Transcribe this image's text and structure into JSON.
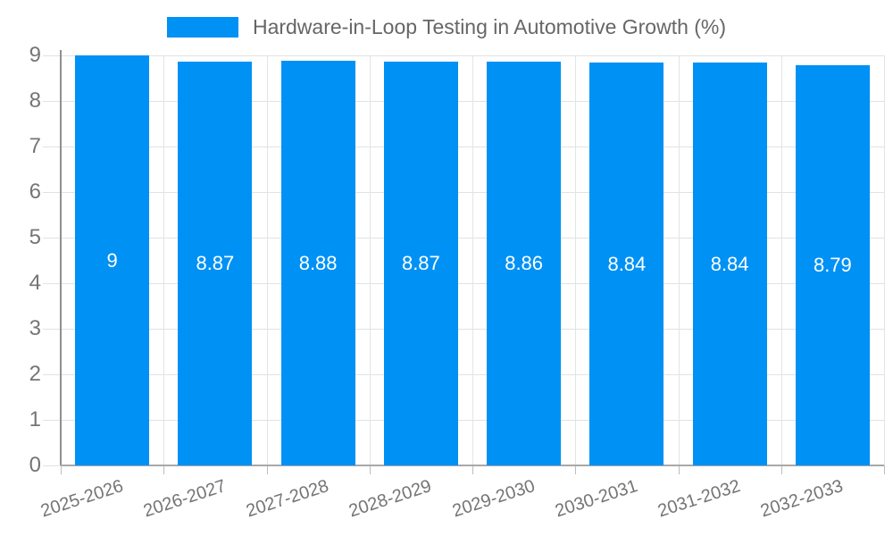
{
  "chart_data": {
    "type": "bar",
    "legend_label": "Hardware-in-Loop Testing in Automotive Growth (%)",
    "categories": [
      "2025-2026",
      "2026-2027",
      "2027-2028",
      "2028-2029",
      "2029-2030",
      "2030-2031",
      "2031-2032",
      "2032-2033"
    ],
    "values": [
      9,
      8.87,
      8.88,
      8.87,
      8.86,
      8.84,
      8.84,
      8.79
    ],
    "value_labels": [
      "9",
      "8.87",
      "8.88",
      "8.87",
      "8.86",
      "8.84",
      "8.84",
      "8.79"
    ],
    "xlabel": "",
    "ylabel": "",
    "ylim": [
      0,
      9
    ],
    "yticks": [
      0,
      1,
      2,
      3,
      4,
      5,
      6,
      7,
      8,
      9
    ],
    "grid": true,
    "legend_position": "top-center",
    "bar_color": "#0091f5",
    "bar_label_color": "#ffffff",
    "tick_text_color": "#757575",
    "legend_text_color": "#666666"
  }
}
